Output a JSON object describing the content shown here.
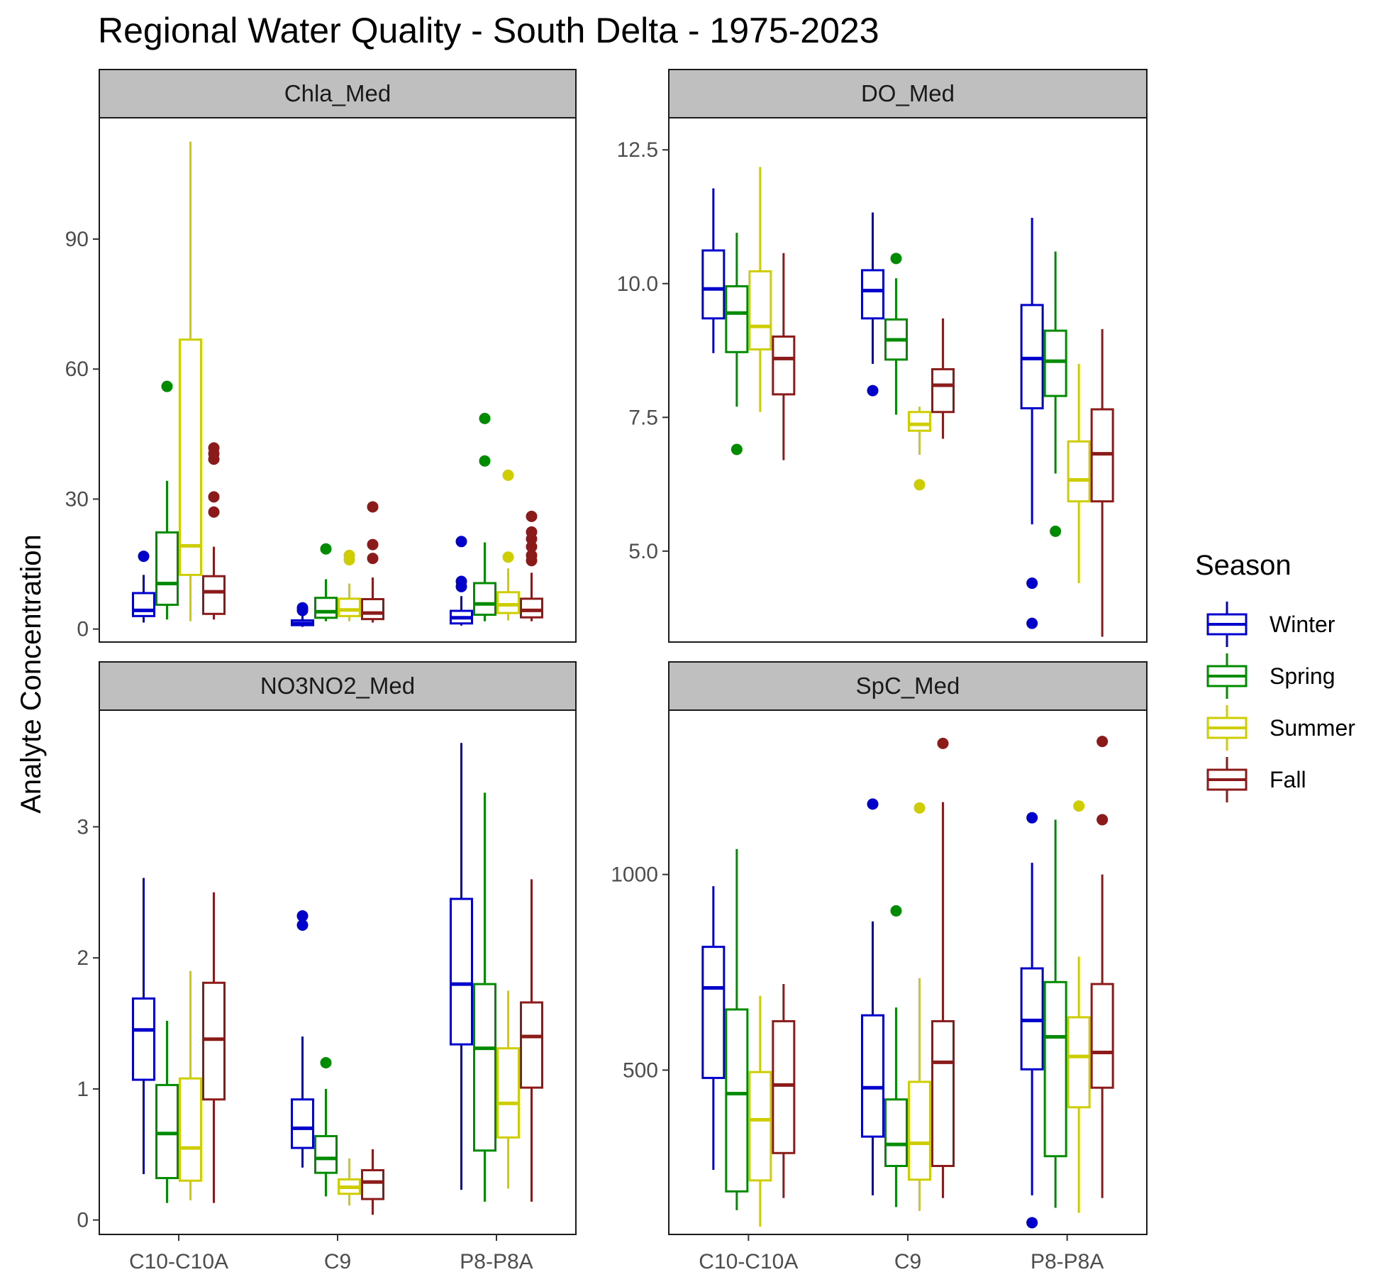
{
  "chart_data": {
    "type": "boxplot",
    "title": "Regional Water Quality - South Delta - 1975-2023",
    "ylabel": "Analyte Concentration",
    "xlabel": "",
    "grid": false,
    "legend_position": "right",
    "legend_title": "Season",
    "categories": [
      "C10-C10A",
      "C9",
      "P8-P8A"
    ],
    "seasons": [
      {
        "name": "Winter",
        "color": "#0000CD"
      },
      {
        "name": "Spring",
        "color": "#008B00"
      },
      {
        "name": "Summer",
        "color": "#CDCD00"
      },
      {
        "name": "Fall",
        "color": "#8B1A1A"
      }
    ],
    "panels": [
      {
        "name": "Chla_Med",
        "ylim": [
          -3,
          118
        ],
        "yticks": [
          0,
          30,
          60,
          90
        ],
        "ytick_labels": [
          "0",
          "30",
          "60",
          "90"
        ],
        "boxes": [
          [
            {
              "lw": 1.5,
              "q1": 3,
              "med": 4.3,
              "q3": 8.3,
              "uw": 12.5,
              "out": [
                16.8
              ]
            },
            {
              "lw": 2.2,
              "q1": 5.6,
              "med": 10.5,
              "q3": 22.3,
              "uw": 34.2,
              "out": [
                56
              ]
            },
            {
              "lw": 1.8,
              "q1": 12.5,
              "med": 19.2,
              "q3": 66.8,
              "uw": 112.5,
              "out": []
            },
            {
              "lw": 2.2,
              "q1": 3.5,
              "med": 8.6,
              "q3": 12.2,
              "uw": 19,
              "out": [
                27,
                30.5,
                39.2,
                40.5,
                41.8
              ]
            }
          ],
          [
            {
              "lw": 0.5,
              "q1": 0.9,
              "med": 1.3,
              "q3": 2,
              "uw": 3.2,
              "out": [
                4.3,
                4.9
              ]
            },
            {
              "lw": 1.8,
              "q1": 2.6,
              "med": 4,
              "q3": 7.2,
              "uw": 11.5,
              "out": [
                18.5
              ]
            },
            {
              "lw": 1.8,
              "q1": 3,
              "med": 4.4,
              "q3": 7,
              "uw": 10.5,
              "out": [
                16,
                17
              ]
            },
            {
              "lw": 1.5,
              "q1": 2.3,
              "med": 3.7,
              "q3": 6.9,
              "uw": 11.9,
              "out": [
                16.3,
                19.5,
                28.2
              ]
            }
          ],
          [
            {
              "lw": 0.8,
              "q1": 1.3,
              "med": 2.6,
              "q3": 4.2,
              "uw": 7.6,
              "out": [
                9.8,
                11,
                20.2
              ]
            },
            {
              "lw": 1.8,
              "q1": 3.3,
              "med": 5.8,
              "q3": 10.6,
              "uw": 20,
              "out": [
                38.8,
                48.6
              ]
            },
            {
              "lw": 2,
              "q1": 3.7,
              "med": 5.6,
              "q3": 8.5,
              "uw": 14,
              "out": [
                16.6,
                35.5
              ]
            },
            {
              "lw": 1.8,
              "q1": 2.7,
              "med": 4.3,
              "q3": 7,
              "uw": 13,
              "out": [
                15.8,
                17,
                19,
                20.8,
                22.4,
                26
              ]
            }
          ]
        ]
      },
      {
        "name": "DO_Med",
        "ylim": [
          3.3,
          13.1
        ],
        "yticks": [
          5,
          7.5,
          10,
          12.5
        ],
        "ytick_labels": [
          "5.0",
          "7.5",
          "10.0",
          "12.5"
        ],
        "boxes": [
          [
            {
              "lw": 8.7,
              "q1": 9.35,
              "med": 9.9,
              "q3": 10.62,
              "uw": 11.78,
              "out": []
            },
            {
              "lw": 7.7,
              "q1": 8.72,
              "med": 9.45,
              "q3": 9.95,
              "uw": 10.95,
              "out": [
                6.9
              ]
            },
            {
              "lw": 7.6,
              "q1": 8.77,
              "med": 9.2,
              "q3": 10.23,
              "uw": 12.18,
              "out": []
            },
            {
              "lw": 6.7,
              "q1": 7.93,
              "med": 8.6,
              "q3": 9.01,
              "uw": 10.57,
              "out": []
            }
          ],
          [
            {
              "lw": 8.5,
              "q1": 9.35,
              "med": 9.87,
              "q3": 10.25,
              "uw": 11.33,
              "out": [
                8
              ]
            },
            {
              "lw": 7.55,
              "q1": 8.58,
              "med": 8.95,
              "q3": 9.33,
              "uw": 10.1,
              "out": [
                10.47
              ]
            },
            {
              "lw": 6.8,
              "q1": 7.25,
              "med": 7.37,
              "q3": 7.6,
              "uw": 7.7,
              "out": [
                6.24
              ]
            },
            {
              "lw": 7.1,
              "q1": 7.6,
              "med": 8.1,
              "q3": 8.4,
              "uw": 9.35,
              "out": []
            }
          ],
          [
            {
              "lw": 5.5,
              "q1": 7.67,
              "med": 8.6,
              "q3": 9.6,
              "uw": 11.23,
              "out": [
                3.65,
                4.4
              ]
            },
            {
              "lw": 6.45,
              "q1": 7.9,
              "med": 8.55,
              "q3": 9.12,
              "uw": 10.6,
              "out": [
                5.37
              ]
            },
            {
              "lw": 4.4,
              "q1": 5.93,
              "med": 6.33,
              "q3": 7.05,
              "uw": 8.5,
              "out": []
            },
            {
              "lw": 3.4,
              "q1": 5.93,
              "med": 6.82,
              "q3": 7.65,
              "uw": 9.15,
              "out": []
            }
          ]
        ]
      },
      {
        "name": "NO3NO2_Med",
        "ylim": [
          -0.11,
          3.89
        ],
        "yticks": [
          0,
          1,
          2,
          3
        ],
        "ytick_labels": [
          "0",
          "1",
          "2",
          "3"
        ],
        "boxes": [
          [
            {
              "lw": 0.35,
              "q1": 1.07,
              "med": 1.45,
              "q3": 1.69,
              "uw": 2.61,
              "out": []
            },
            {
              "lw": 0.13,
              "q1": 0.32,
              "med": 0.66,
              "q3": 1.03,
              "uw": 1.52,
              "out": []
            },
            {
              "lw": 0.15,
              "q1": 0.3,
              "med": 0.55,
              "q3": 1.08,
              "uw": 1.9,
              "out": []
            },
            {
              "lw": 0.13,
              "q1": 0.92,
              "med": 1.38,
              "q3": 1.81,
              "uw": 2.5,
              "out": []
            }
          ],
          [
            {
              "lw": 0.4,
              "q1": 0.55,
              "med": 0.7,
              "q3": 0.92,
              "uw": 1.4,
              "out": [
                2.25,
                2.32
              ]
            },
            {
              "lw": 0.18,
              "q1": 0.36,
              "med": 0.47,
              "q3": 0.64,
              "uw": 1,
              "out": [
                1.2
              ]
            },
            {
              "lw": 0.11,
              "q1": 0.2,
              "med": 0.25,
              "q3": 0.31,
              "uw": 0.47,
              "out": []
            },
            {
              "lw": 0.04,
              "q1": 0.16,
              "med": 0.29,
              "q3": 0.38,
              "uw": 0.54,
              "out": []
            }
          ],
          [
            {
              "lw": 0.23,
              "q1": 1.34,
              "med": 1.8,
              "q3": 2.45,
              "uw": 3.64,
              "out": []
            },
            {
              "lw": 0.14,
              "q1": 0.53,
              "med": 1.31,
              "q3": 1.8,
              "uw": 3.26,
              "out": []
            },
            {
              "lw": 0.24,
              "q1": 0.63,
              "med": 0.89,
              "q3": 1.31,
              "uw": 1.75,
              "out": []
            },
            {
              "lw": 0.14,
              "q1": 1.01,
              "med": 1.4,
              "q3": 1.66,
              "uw": 2.6,
              "out": []
            }
          ]
        ]
      },
      {
        "name": "SpC_Med",
        "ylim": [
          80,
          1420
        ],
        "yticks": [
          500,
          1000
        ],
        "ytick_labels": [
          "500",
          "1000"
        ],
        "boxes": [
          [
            {
              "lw": 245,
              "q1": 480,
              "med": 710,
              "q3": 815,
              "uw": 970,
              "out": []
            },
            {
              "lw": 142,
              "q1": 190,
              "med": 440,
              "q3": 655,
              "uw": 1065,
              "out": []
            },
            {
              "lw": 100,
              "q1": 218,
              "med": 373,
              "q3": 495,
              "uw": 690,
              "out": []
            },
            {
              "lw": 173,
              "q1": 288,
              "med": 462,
              "q3": 625,
              "uw": 720,
              "out": []
            }
          ],
          [
            {
              "lw": 180,
              "q1": 330,
              "med": 455,
              "q3": 640,
              "uw": 880,
              "out": [
                1180
              ]
            },
            {
              "lw": 150,
              "q1": 255,
              "med": 310,
              "q3": 425,
              "uw": 660,
              "out": [
                907
              ]
            },
            {
              "lw": 140,
              "q1": 220,
              "med": 313,
              "q3": 470,
              "uw": 735,
              "out": [
                1170
              ]
            },
            {
              "lw": 173,
              "q1": 255,
              "med": 520,
              "q3": 625,
              "uw": 1185,
              "out": [
                1335
              ]
            }
          ],
          [
            {
              "lw": 180,
              "q1": 502,
              "med": 627,
              "q3": 760,
              "uw": 1030,
              "out": [
                110,
                1145
              ]
            },
            {
              "lw": 148,
              "q1": 280,
              "med": 585,
              "q3": 725,
              "uw": 1140,
              "out": []
            },
            {
              "lw": 135,
              "q1": 405,
              "med": 535,
              "q3": 635,
              "uw": 790,
              "out": [
                1175
              ]
            },
            {
              "lw": 173,
              "q1": 455,
              "med": 545,
              "q3": 720,
              "uw": 1000,
              "out": [
                1140,
                1340
              ]
            }
          ]
        ]
      }
    ]
  }
}
